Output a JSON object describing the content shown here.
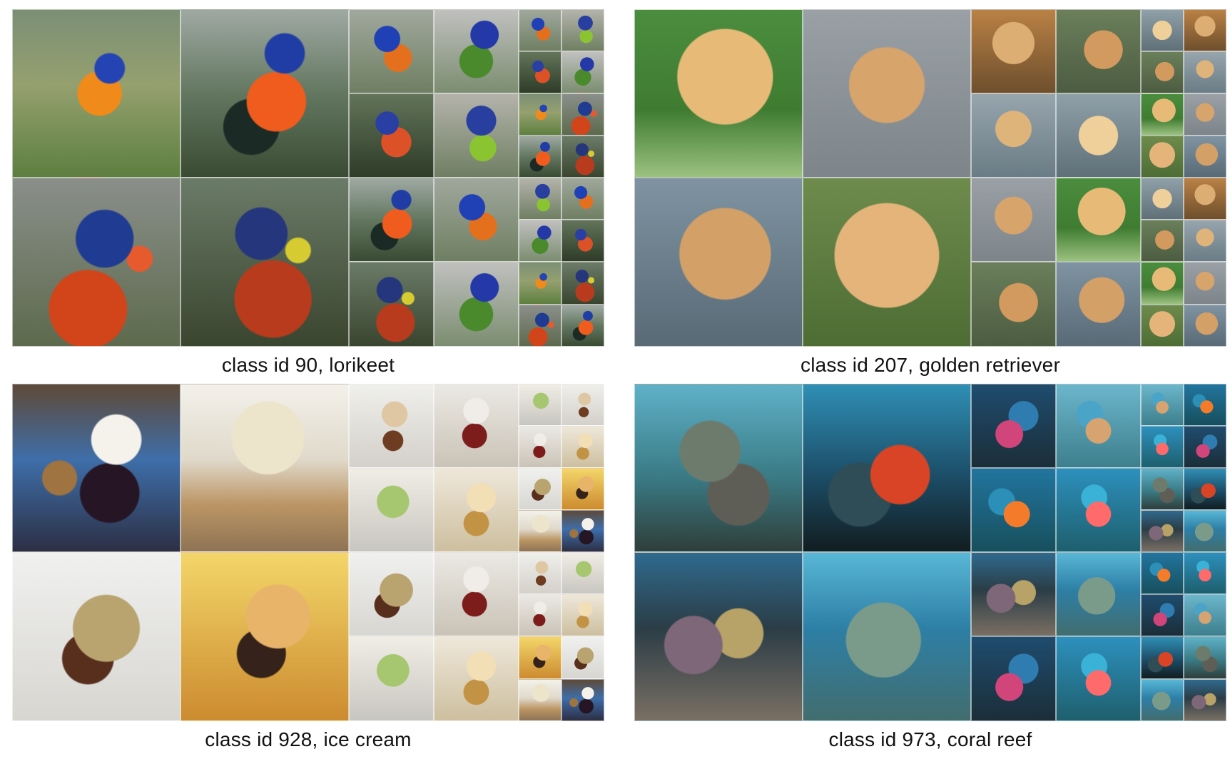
{
  "panels": [
    {
      "id": "lorikeet",
      "caption": "class id 90,  lorikeet",
      "tiles": {
        "large": [
          {
            "name": "lorikeet-tile-large-1",
            "class": "lori-a"
          },
          {
            "name": "lorikeet-tile-large-2",
            "class": "lori-b"
          },
          {
            "name": "lorikeet-tile-large-3",
            "class": "lori-c"
          },
          {
            "name": "lorikeet-tile-large-4",
            "class": "lori-d"
          }
        ],
        "medium": [
          {
            "name": "lorikeet-tile-medium-1",
            "class": "lori-e"
          },
          {
            "name": "lorikeet-tile-medium-2",
            "class": "lori-f"
          },
          {
            "name": "lorikeet-tile-medium-3",
            "class": "lori-g"
          },
          {
            "name": "lorikeet-tile-medium-4",
            "class": "lori-h"
          },
          {
            "name": "lorikeet-tile-medium-5",
            "class": "lori-b"
          },
          {
            "name": "lorikeet-tile-medium-6",
            "class": "lori-e"
          },
          {
            "name": "lorikeet-tile-medium-7",
            "class": "lori-d"
          },
          {
            "name": "lorikeet-tile-medium-8",
            "class": "lori-f"
          }
        ],
        "small": [
          {
            "name": "lorikeet-tile-small-1",
            "class": "lori-e"
          },
          {
            "name": "lorikeet-tile-small-2",
            "class": "lori-h"
          },
          {
            "name": "lorikeet-tile-small-3",
            "class": "lori-g"
          },
          {
            "name": "lorikeet-tile-small-4",
            "class": "lori-f"
          },
          {
            "name": "lorikeet-tile-small-5",
            "class": "lori-a"
          },
          {
            "name": "lorikeet-tile-small-6",
            "class": "lori-c"
          },
          {
            "name": "lorikeet-tile-small-7",
            "class": "lori-b"
          },
          {
            "name": "lorikeet-tile-small-8",
            "class": "lori-d"
          },
          {
            "name": "lorikeet-tile-small-9",
            "class": "lori-h"
          },
          {
            "name": "lorikeet-tile-small-10",
            "class": "lori-e"
          },
          {
            "name": "lorikeet-tile-small-11",
            "class": "lori-f"
          },
          {
            "name": "lorikeet-tile-small-12",
            "class": "lori-g"
          },
          {
            "name": "lorikeet-tile-small-13",
            "class": "lori-a"
          },
          {
            "name": "lorikeet-tile-small-14",
            "class": "lori-d"
          },
          {
            "name": "lorikeet-tile-small-15",
            "class": "lori-c"
          },
          {
            "name": "lorikeet-tile-small-16",
            "class": "lori-b"
          }
        ]
      }
    },
    {
      "id": "golden-retriever",
      "caption": "class id 207,  golden retriever",
      "tiles": {
        "large": [
          {
            "name": "golden-retriever-tile-large-1",
            "class": "gold-a"
          },
          {
            "name": "golden-retriever-tile-large-2",
            "class": "gold-b"
          },
          {
            "name": "golden-retriever-tile-large-3",
            "class": "gold-c"
          },
          {
            "name": "golden-retriever-tile-large-4",
            "class": "gold-d"
          }
        ],
        "medium": [
          {
            "name": "golden-retriever-tile-medium-1",
            "class": "gold-e"
          },
          {
            "name": "golden-retriever-tile-medium-2",
            "class": "gold-f"
          },
          {
            "name": "golden-retriever-tile-medium-3",
            "class": "gold-g"
          },
          {
            "name": "golden-retriever-tile-medium-4",
            "class": "gold-h"
          },
          {
            "name": "golden-retriever-tile-medium-5",
            "class": "gold-b"
          },
          {
            "name": "golden-retriever-tile-medium-6",
            "class": "gold-a"
          },
          {
            "name": "golden-retriever-tile-medium-7",
            "class": "gold-f"
          },
          {
            "name": "golden-retriever-tile-medium-8",
            "class": "gold-c"
          }
        ],
        "small": [
          {
            "name": "golden-retriever-tile-small-1",
            "class": "gold-h"
          },
          {
            "name": "golden-retriever-tile-small-2",
            "class": "gold-e"
          },
          {
            "name": "golden-retriever-tile-small-3",
            "class": "gold-f"
          },
          {
            "name": "golden-retriever-tile-small-4",
            "class": "gold-g"
          },
          {
            "name": "golden-retriever-tile-small-5",
            "class": "gold-a"
          },
          {
            "name": "golden-retriever-tile-small-6",
            "class": "gold-b"
          },
          {
            "name": "golden-retriever-tile-small-7",
            "class": "gold-d"
          },
          {
            "name": "golden-retriever-tile-small-8",
            "class": "gold-c"
          },
          {
            "name": "golden-retriever-tile-small-9",
            "class": "gold-h"
          },
          {
            "name": "golden-retriever-tile-small-10",
            "class": "gold-e"
          },
          {
            "name": "golden-retriever-tile-small-11",
            "class": "gold-f"
          },
          {
            "name": "golden-retriever-tile-small-12",
            "class": "gold-g"
          },
          {
            "name": "golden-retriever-tile-small-13",
            "class": "gold-a"
          },
          {
            "name": "golden-retriever-tile-small-14",
            "class": "gold-b"
          },
          {
            "name": "golden-retriever-tile-small-15",
            "class": "gold-d"
          },
          {
            "name": "golden-retriever-tile-small-16",
            "class": "gold-c"
          }
        ]
      }
    },
    {
      "id": "ice-cream",
      "caption": "class id 928,  ice cream",
      "tiles": {
        "large": [
          {
            "name": "ice-cream-tile-large-1",
            "class": "ice-a"
          },
          {
            "name": "ice-cream-tile-large-2",
            "class": "ice-b"
          },
          {
            "name": "ice-cream-tile-large-3",
            "class": "ice-c"
          },
          {
            "name": "ice-cream-tile-large-4",
            "class": "ice-d"
          }
        ],
        "medium": [
          {
            "name": "ice-cream-tile-medium-1",
            "class": "ice-e"
          },
          {
            "name": "ice-cream-tile-medium-2",
            "class": "ice-f"
          },
          {
            "name": "ice-cream-tile-medium-3",
            "class": "ice-g"
          },
          {
            "name": "ice-cream-tile-medium-4",
            "class": "ice-h"
          },
          {
            "name": "ice-cream-tile-medium-5",
            "class": "ice-c"
          },
          {
            "name": "ice-cream-tile-medium-6",
            "class": "ice-f"
          },
          {
            "name": "ice-cream-tile-medium-7",
            "class": "ice-g"
          },
          {
            "name": "ice-cream-tile-medium-8",
            "class": "ice-h"
          }
        ],
        "small": [
          {
            "name": "ice-cream-tile-small-1",
            "class": "ice-g"
          },
          {
            "name": "ice-cream-tile-small-2",
            "class": "ice-e"
          },
          {
            "name": "ice-cream-tile-small-3",
            "class": "ice-f"
          },
          {
            "name": "ice-cream-tile-small-4",
            "class": "ice-h"
          },
          {
            "name": "ice-cream-tile-small-5",
            "class": "ice-c"
          },
          {
            "name": "ice-cream-tile-small-6",
            "class": "ice-d"
          },
          {
            "name": "ice-cream-tile-small-7",
            "class": "ice-b"
          },
          {
            "name": "ice-cream-tile-small-8",
            "class": "ice-a"
          },
          {
            "name": "ice-cream-tile-small-9",
            "class": "ice-e"
          },
          {
            "name": "ice-cream-tile-small-10",
            "class": "ice-g"
          },
          {
            "name": "ice-cream-tile-small-11",
            "class": "ice-f"
          },
          {
            "name": "ice-cream-tile-small-12",
            "class": "ice-h"
          },
          {
            "name": "ice-cream-tile-small-13",
            "class": "ice-d"
          },
          {
            "name": "ice-cream-tile-small-14",
            "class": "ice-c"
          },
          {
            "name": "ice-cream-tile-small-15",
            "class": "ice-b"
          },
          {
            "name": "ice-cream-tile-small-16",
            "class": "ice-a"
          }
        ]
      }
    },
    {
      "id": "coral-reef",
      "caption": "class id 973,  coral reef",
      "tiles": {
        "large": [
          {
            "name": "coral-reef-tile-large-1",
            "class": "coral-a"
          },
          {
            "name": "coral-reef-tile-large-2",
            "class": "coral-b"
          },
          {
            "name": "coral-reef-tile-large-3",
            "class": "coral-c"
          },
          {
            "name": "coral-reef-tile-large-4",
            "class": "coral-d"
          }
        ],
        "medium": [
          {
            "name": "coral-reef-tile-medium-1",
            "class": "coral-e"
          },
          {
            "name": "coral-reef-tile-medium-2",
            "class": "coral-f"
          },
          {
            "name": "coral-reef-tile-medium-3",
            "class": "coral-g"
          },
          {
            "name": "coral-reef-tile-medium-4",
            "class": "coral-h"
          },
          {
            "name": "coral-reef-tile-medium-5",
            "class": "coral-c"
          },
          {
            "name": "coral-reef-tile-medium-6",
            "class": "coral-d"
          },
          {
            "name": "coral-reef-tile-medium-7",
            "class": "coral-e"
          },
          {
            "name": "coral-reef-tile-medium-8",
            "class": "coral-h"
          }
        ],
        "small": [
          {
            "name": "coral-reef-tile-small-1",
            "class": "coral-f"
          },
          {
            "name": "coral-reef-tile-small-2",
            "class": "coral-g"
          },
          {
            "name": "coral-reef-tile-small-3",
            "class": "coral-h"
          },
          {
            "name": "coral-reef-tile-small-4",
            "class": "coral-e"
          },
          {
            "name": "coral-reef-tile-small-5",
            "class": "coral-a"
          },
          {
            "name": "coral-reef-tile-small-6",
            "class": "coral-b"
          },
          {
            "name": "coral-reef-tile-small-7",
            "class": "coral-c"
          },
          {
            "name": "coral-reef-tile-small-8",
            "class": "coral-d"
          },
          {
            "name": "coral-reef-tile-small-9",
            "class": "coral-g"
          },
          {
            "name": "coral-reef-tile-small-10",
            "class": "coral-h"
          },
          {
            "name": "coral-reef-tile-small-11",
            "class": "coral-e"
          },
          {
            "name": "coral-reef-tile-small-12",
            "class": "coral-f"
          },
          {
            "name": "coral-reef-tile-small-13",
            "class": "coral-b"
          },
          {
            "name": "coral-reef-tile-small-14",
            "class": "coral-a"
          },
          {
            "name": "coral-reef-tile-small-15",
            "class": "coral-d"
          },
          {
            "name": "coral-reef-tile-small-16",
            "class": "coral-c"
          }
        ]
      }
    }
  ]
}
